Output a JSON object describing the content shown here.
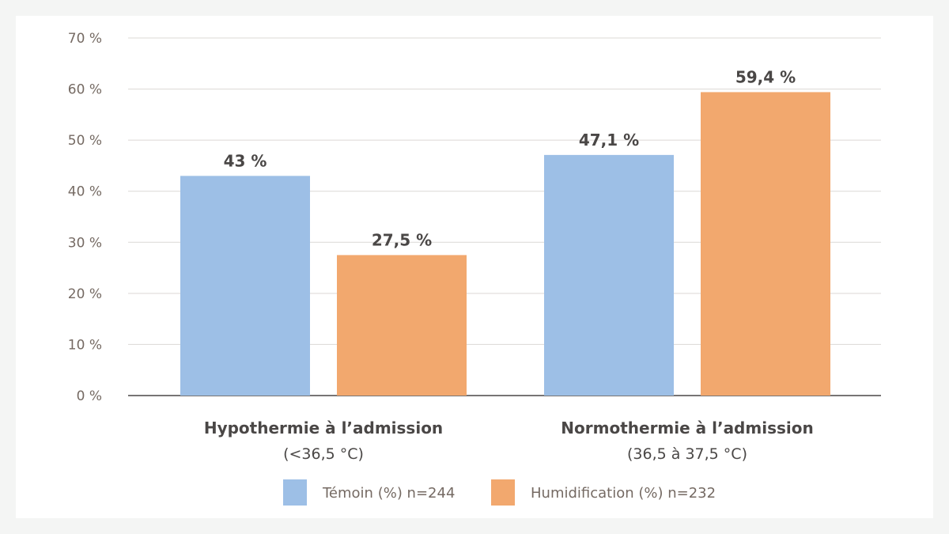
{
  "chart_data": {
    "type": "bar",
    "categories": [
      {
        "title": "Hypothermie à l’admission",
        "subtitle": "(<36,5 °C)"
      },
      {
        "title": "Normothermie à l’admission",
        "subtitle": "(36,5 à 37,5 °C)"
      }
    ],
    "series": [
      {
        "name": "Témoin (%) n=244",
        "color": "#9dbfe6",
        "values": [
          43,
          47.1
        ],
        "labels": [
          "43 %",
          "47,1 %"
        ]
      },
      {
        "name": "Humidification (%) n=232",
        "color": "#f2a86e",
        "values": [
          27.5,
          59.4
        ],
        "labels": [
          "27,5 %",
          "59,4 %"
        ]
      }
    ],
    "yticks": [
      "0 %",
      "10 %",
      "20 %",
      "30 %",
      "40 %",
      "50 %",
      "60 %",
      "70 %"
    ],
    "ylim": [
      0,
      70
    ],
    "grid": true,
    "legend_position": "bottom",
    "title": "",
    "xlabel": "",
    "ylabel": ""
  }
}
